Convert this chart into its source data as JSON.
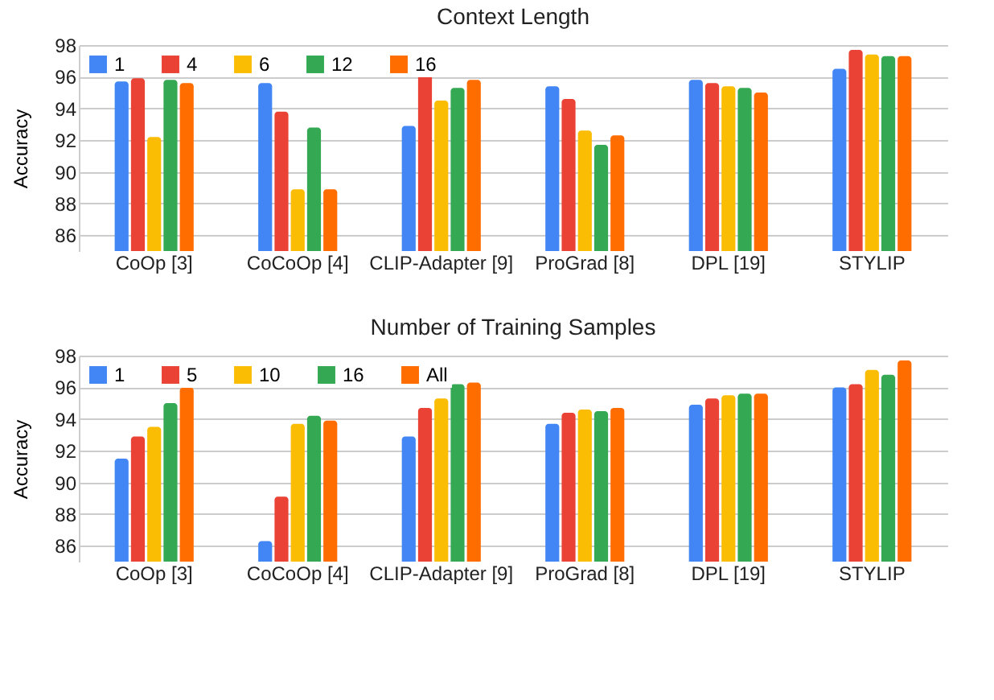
{
  "chart_data": [
    {
      "type": "bar",
      "title": "Context Length",
      "ylabel": "Accuracy",
      "categories": [
        "CoOp [3]",
        "CoCoOp [4]",
        "CLIP-Adapter [9]",
        "ProGrad [8]",
        "DPL [19]",
        "STYLIP"
      ],
      "ylim": [
        85,
        98
      ],
      "yticks": [
        86,
        88,
        90,
        92,
        94,
        96,
        98
      ],
      "grid": "y",
      "legend": "top left",
      "series": [
        {
          "name": "1",
          "color": "#4285f4",
          "values": [
            95.7,
            95.6,
            92.9,
            95.4,
            95.8,
            96.5
          ]
        },
        {
          "name": "4",
          "color": "#ea4335",
          "values": [
            95.9,
            93.8,
            96.3,
            94.6,
            95.6,
            97.7
          ]
        },
        {
          "name": "6",
          "color": "#fbbc04",
          "values": [
            92.2,
            88.9,
            94.5,
            92.6,
            95.4,
            97.4
          ]
        },
        {
          "name": "12",
          "color": "#34a853",
          "values": [
            95.8,
            92.8,
            95.3,
            91.7,
            95.3,
            97.3
          ]
        },
        {
          "name": "16",
          "color": "#ff6d01",
          "values": [
            95.6,
            88.9,
            95.8,
            92.3,
            95.0,
            97.3
          ]
        }
      ]
    },
    {
      "type": "bar",
      "title": "Number of Training Samples",
      "ylabel": "Accuracy",
      "categories": [
        "CoOp [3]",
        "CoCoOp [4]",
        "CLIP-Adapter [9]",
        "ProGrad [8]",
        "DPL [19]",
        "STYLIP"
      ],
      "ylim": [
        85,
        98
      ],
      "yticks": [
        86,
        88,
        90,
        92,
        94,
        96,
        98
      ],
      "grid": "y",
      "legend": "top left",
      "series": [
        {
          "name": "1",
          "color": "#4285f4",
          "values": [
            91.5,
            86.3,
            92.9,
            93.7,
            94.9,
            96.0
          ]
        },
        {
          "name": "5",
          "color": "#ea4335",
          "values": [
            92.9,
            89.1,
            94.7,
            94.4,
            95.3,
            96.2
          ]
        },
        {
          "name": "10",
          "color": "#fbbc04",
          "values": [
            93.5,
            93.7,
            95.3,
            94.6,
            95.5,
            97.1
          ]
        },
        {
          "name": "16",
          "color": "#34a853",
          "values": [
            95.0,
            94.2,
            96.2,
            94.5,
            95.6,
            96.8
          ]
        },
        {
          "name": "All",
          "color": "#ff6d01",
          "values": [
            96.0,
            93.9,
            96.3,
            94.7,
            95.6,
            97.7
          ]
        }
      ]
    }
  ]
}
